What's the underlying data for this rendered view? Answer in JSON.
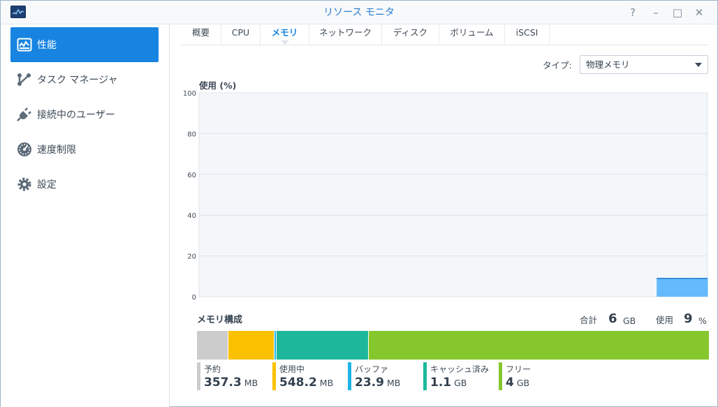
{
  "window": {
    "title": "リソース モニタ",
    "controls": {
      "help": "?",
      "minimize": "–",
      "maximize": "□",
      "close": "✕"
    }
  },
  "sidebar": {
    "items": [
      {
        "label": "性能",
        "icon": "performance-icon",
        "active": true
      },
      {
        "label": "タスク マネージャ",
        "icon": "task-manager-icon",
        "active": false
      },
      {
        "label": "接続中のユーザー",
        "icon": "plug-icon",
        "active": false
      },
      {
        "label": "速度制限",
        "icon": "speedometer-icon",
        "active": false
      },
      {
        "label": "設定",
        "icon": "gear-icon",
        "active": false
      }
    ]
  },
  "tabs": [
    "概要",
    "CPU",
    "メモリ",
    "ネットワーク",
    "ディスク",
    "ボリューム",
    "iSCSI"
  ],
  "active_tab": "メモリ",
  "type_selector": {
    "label": "タイプ:",
    "value": "物理メモリ"
  },
  "chart_title": "使用 (%)",
  "chart_data": {
    "type": "area",
    "title": "使用 (%)",
    "ylim": [
      0,
      100
    ],
    "yticks": [
      0,
      20,
      40,
      60,
      80,
      100
    ],
    "grid": true,
    "series": [
      {
        "values": [
          0,
          0,
          0,
          0,
          0,
          0,
          0,
          0,
          0,
          0,
          0,
          0,
          0,
          0,
          0,
          0,
          0,
          0,
          0,
          0,
          0,
          0,
          0,
          0,
          0,
          0,
          0,
          9,
          9,
          9
        ]
      }
    ],
    "color": "#64bafc"
  },
  "memory": {
    "title": "メモリ構成",
    "total_label": "合計",
    "total_value": "6",
    "total_unit": "GB",
    "used_label": "使用",
    "used_value": "9",
    "used_unit": "%",
    "segments": [
      {
        "label": "予約",
        "value": "357.3",
        "unit": "MB",
        "color": "#cccccc",
        "fraction": 0.06
      },
      {
        "label": "使用中",
        "value": "548.2",
        "unit": "MB",
        "color": "#fbc100",
        "fraction": 0.0895
      },
      {
        "label": "バッファ",
        "value": "23.9",
        "unit": "MB",
        "color": "#1fb3e8",
        "fraction": 0.005
      },
      {
        "label": "キャッシュ済み",
        "value": "1.1",
        "unit": "GB",
        "color": "#1db89b",
        "fraction": 0.18
      },
      {
        "label": "フリー",
        "value": "4",
        "unit": "GB",
        "color": "#86c72e",
        "fraction": 0.6655
      }
    ]
  }
}
